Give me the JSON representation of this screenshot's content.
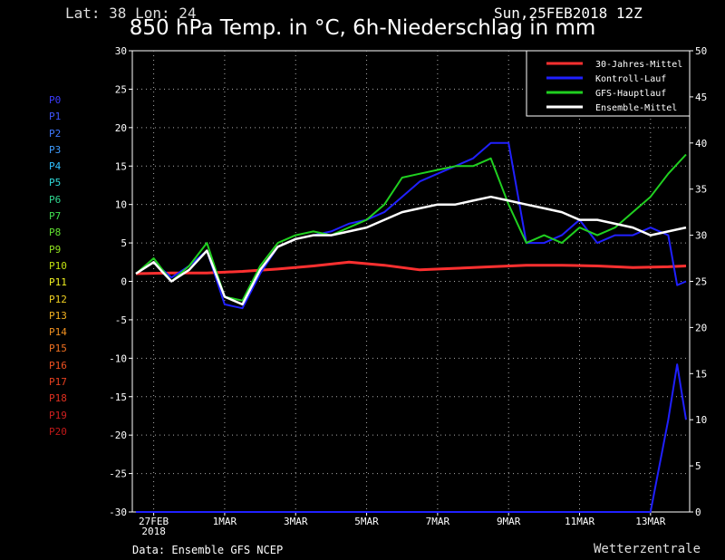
{
  "header": {
    "location": "Lat: 38 Lon: 24",
    "datetime": "Sun,25FEB2018 12Z",
    "title": "850 hPa Temp. in °C, 6h-Niederschlag in mm"
  },
  "footer": {
    "source": "Data: Ensemble GFS NCEP",
    "brand": "Wetterzentrale"
  },
  "members": [
    {
      "label": "P0",
      "color": "#3b3bff"
    },
    {
      "label": "P1",
      "color": "#3f55ff"
    },
    {
      "label": "P2",
      "color": "#3f78ff"
    },
    {
      "label": "P3",
      "color": "#3f9cff"
    },
    {
      "label": "P4",
      "color": "#2fc0ff"
    },
    {
      "label": "P5",
      "color": "#2fd8d8"
    },
    {
      "label": "P6",
      "color": "#2fd890"
    },
    {
      "label": "P7",
      "color": "#3fe050"
    },
    {
      "label": "P8",
      "color": "#60e030"
    },
    {
      "label": "P9",
      "color": "#90e020"
    },
    {
      "label": "P10",
      "color": "#c0e010"
    },
    {
      "label": "P11",
      "color": "#f0f020"
    },
    {
      "label": "P12",
      "color": "#f0d020"
    },
    {
      "label": "P13",
      "color": "#f0b020"
    },
    {
      "label": "P14",
      "color": "#f09020"
    },
    {
      "label": "P15",
      "color": "#f07020"
    },
    {
      "label": "P16",
      "color": "#f05020"
    },
    {
      "label": "P17",
      "color": "#e84020"
    },
    {
      "label": "P18",
      "color": "#e03020"
    },
    {
      "label": "P19",
      "color": "#d02020"
    },
    {
      "label": "P20",
      "color": "#c01818"
    }
  ],
  "chart_data": {
    "type": "line",
    "x_tick_labels": [
      "27FEB",
      "1MAR",
      "3MAR",
      "5MAR",
      "7MAR",
      "9MAR",
      "11MAR",
      "13MAR"
    ],
    "x_tick_sublabel": "2018",
    "x_range_hours": [
      0,
      372
    ],
    "ylim_left": [
      -30,
      30
    ],
    "yticks_left": [
      30,
      25,
      20,
      15,
      10,
      5,
      0,
      -5,
      -10,
      -15,
      -20,
      -25,
      -30
    ],
    "ylim_right": [
      0,
      50
    ],
    "yticks_right": [
      50,
      45,
      40,
      35,
      30,
      25,
      20,
      15,
      10,
      5,
      0
    ],
    "grid": true,
    "legend_position": "top-right",
    "legend": [
      {
        "label": "30-Jahres-Mittel",
        "color": "#ff3030"
      },
      {
        "label": "Kontroll-Lauf",
        "color": "#2020ff"
      },
      {
        "label": "GFS-Hauptlauf",
        "color": "#20d020"
      },
      {
        "label": "Ensemble-Mittel",
        "color": "#ffffff"
      }
    ],
    "series": [
      {
        "name": "30-Jahres-Mittel",
        "hours": [
          0,
          24,
          48,
          72,
          96,
          120,
          144,
          168,
          192,
          216,
          240,
          264,
          288,
          312,
          336,
          360,
          372
        ],
        "values": [
          1.0,
          1.1,
          1.1,
          1.3,
          1.6,
          2.0,
          2.5,
          2.1,
          1.5,
          1.7,
          1.9,
          2.1,
          2.1,
          2.0,
          1.8,
          1.9,
          2.0
        ]
      },
      {
        "name": "Kontroll-Lauf",
        "hours": [
          0,
          12,
          18,
          24,
          36,
          48,
          60,
          72,
          84,
          96,
          108,
          120,
          132,
          144,
          156,
          168,
          180,
          192,
          204,
          216,
          228,
          240,
          252,
          264,
          276,
          288,
          300,
          312,
          324,
          336,
          348,
          360,
          366,
          372
        ],
        "values": [
          1,
          2.5,
          1.5,
          0.5,
          2,
          4,
          -3,
          -3.5,
          1,
          4.5,
          5.5,
          6,
          6.5,
          7.5,
          8,
          9,
          11,
          13,
          14,
          15,
          16,
          18,
          18,
          5,
          5,
          6,
          8,
          5,
          6,
          6,
          7,
          6,
          -0.5,
          0
        ]
      },
      {
        "name": "GFS-Hauptlauf",
        "hours": [
          0,
          12,
          18,
          24,
          36,
          48,
          60,
          72,
          84,
          96,
          108,
          120,
          132,
          144,
          156,
          168,
          180,
          192,
          204,
          216,
          228,
          240,
          252,
          264,
          276,
          288,
          300,
          312,
          324,
          336,
          348,
          360,
          372
        ],
        "values": [
          1,
          3,
          1.5,
          0,
          2,
          5,
          -2,
          -2.5,
          2,
          5,
          6,
          6.5,
          6,
          7,
          8,
          10,
          13.5,
          14,
          14.5,
          15,
          15,
          16,
          10,
          5,
          6,
          5,
          7,
          6,
          7,
          9,
          11,
          14,
          16.5
        ]
      },
      {
        "name": "Ensemble-Mittel",
        "hours": [
          0,
          12,
          18,
          24,
          36,
          48,
          60,
          72,
          84,
          96,
          108,
          120,
          132,
          144,
          156,
          168,
          180,
          192,
          204,
          216,
          228,
          240,
          252,
          264,
          276,
          288,
          300,
          312,
          324,
          336,
          348,
          360,
          372
        ],
        "values": [
          1,
          2.5,
          1.2,
          0,
          1.5,
          4,
          -2,
          -3,
          1.5,
          4.5,
          5.5,
          6,
          6,
          6.5,
          7,
          8,
          9,
          9.5,
          10,
          10,
          10.5,
          11,
          10.5,
          10,
          9.5,
          9,
          8,
          8,
          7.5,
          7,
          6,
          6.5,
          7
        ]
      },
      {
        "name": "Niederschlag Kontroll-Lauf",
        "axis": "right",
        "hours": [
          0,
          348,
          360,
          366,
          372
        ],
        "values": [
          0,
          0,
          10,
          16,
          10
        ]
      }
    ]
  }
}
